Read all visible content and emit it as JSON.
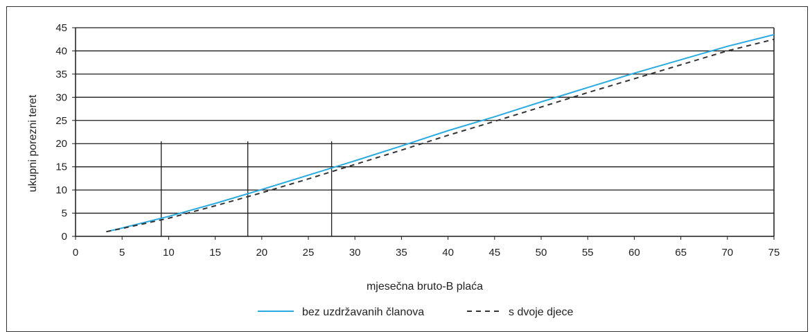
{
  "chart_data": {
    "type": "line",
    "xlabel": "mjesečna bruto-B plaća",
    "ylabel": "ukupni porezni teret",
    "xlim": [
      0,
      75
    ],
    "ylim": [
      0,
      45
    ],
    "x_ticks": [
      0,
      5,
      10,
      15,
      20,
      25,
      30,
      35,
      40,
      45,
      50,
      55,
      60,
      65,
      70,
      75
    ],
    "y_ticks": [
      0,
      5,
      10,
      15,
      20,
      25,
      30,
      35,
      40,
      45
    ],
    "grid": "horizontal",
    "legend_position": "bottom",
    "reference_lines_x": [
      9.2,
      18.5,
      27.5
    ],
    "reference_line_top": 20.5,
    "series": [
      {
        "name": "bez uzdržavanih članova",
        "style": "solid",
        "color": "#29ABE2",
        "x": [
          3.3,
          5,
          10,
          15,
          20,
          25,
          30,
          35,
          40,
          45,
          50,
          55,
          60,
          65,
          70,
          75
        ],
        "y": [
          1.0,
          1.8,
          4.3,
          7.1,
          10.1,
          13.2,
          16.3,
          19.5,
          22.8,
          25.8,
          29.0,
          32.1,
          35.2,
          38.1,
          41.0,
          43.5
        ]
      },
      {
        "name": "s dvoje djece",
        "style": "dashed",
        "color": "#333333",
        "x": [
          3.3,
          5,
          10,
          15,
          20,
          25,
          30,
          35,
          40,
          45,
          50,
          55,
          60,
          65,
          70,
          75
        ],
        "y": [
          1.0,
          1.7,
          3.9,
          6.6,
          9.4,
          12.4,
          15.5,
          18.6,
          21.8,
          24.8,
          27.9,
          31.0,
          34.0,
          37.0,
          40.0,
          42.5
        ]
      }
    ]
  }
}
